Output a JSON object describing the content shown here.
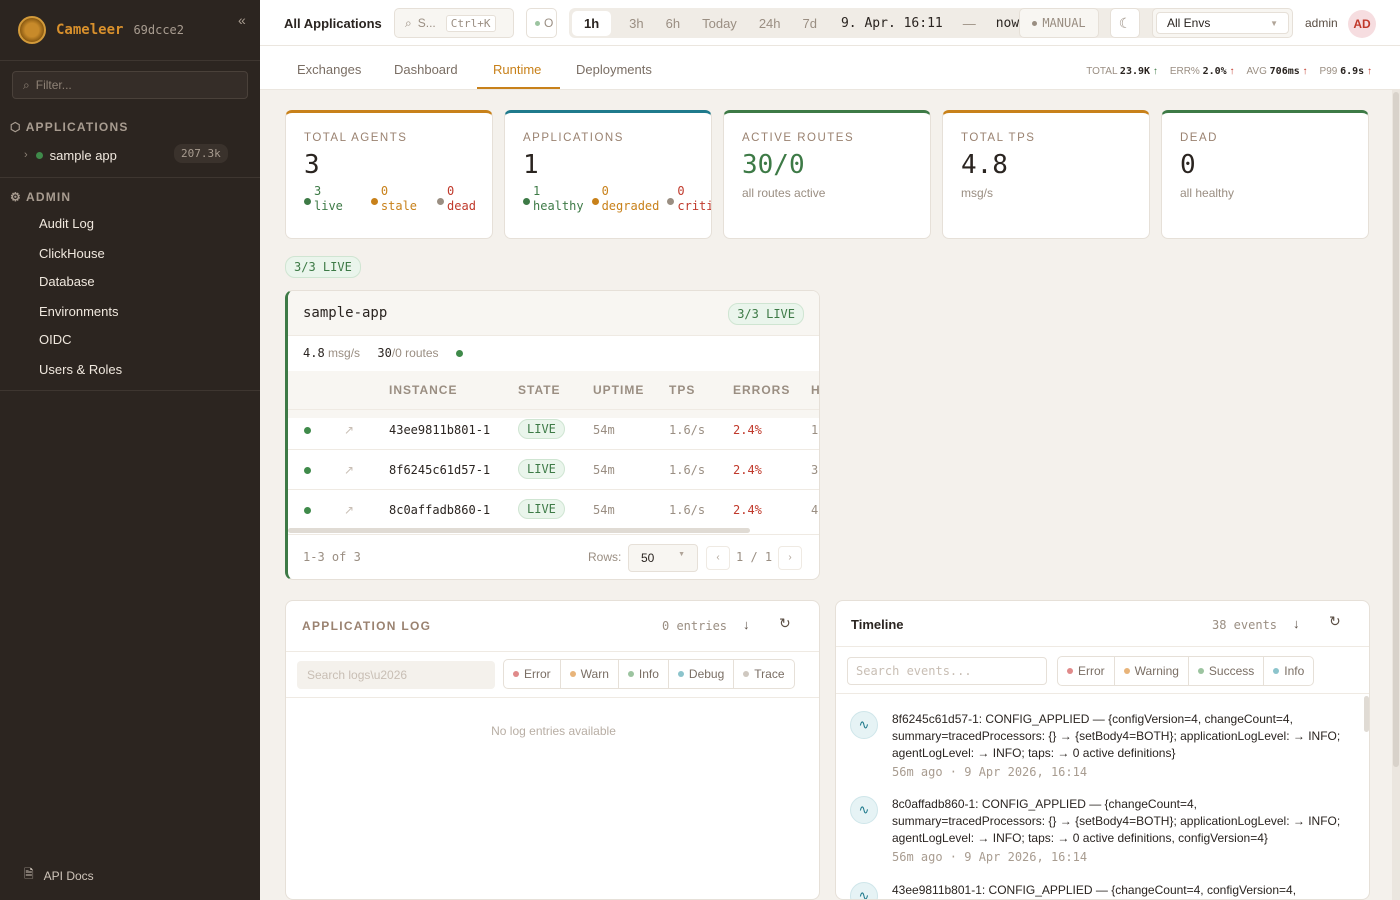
{
  "sidebar": {
    "brand": "Cameleer",
    "version": "69dcce2",
    "filter_placeholder": "Filter...",
    "applications_label": "APPLICATIONS",
    "apps": [
      {
        "name": "sample app",
        "count": "207.3k",
        "status": "live"
      }
    ],
    "admin_label": "ADMIN",
    "admin_items": [
      "Audit Log",
      "ClickHouse",
      "Database",
      "Environments",
      "OIDC",
      "Users & Roles"
    ],
    "api_docs": "API Docs"
  },
  "header": {
    "title": "All Applications",
    "search_placeholder": "S...",
    "search_shortcut": "Ctrl+K",
    "status_label": "O",
    "time_ranges": [
      "1h",
      "3h",
      "6h",
      "Today",
      "24h",
      "7d"
    ],
    "active_range": "1h",
    "range_from": "9. Apr. 16:11",
    "range_sep": "—",
    "range_to": "now",
    "refresh_mode": "MANUAL",
    "env": "All Envs",
    "user": "admin",
    "avatar": "AD"
  },
  "tabs": [
    "Exchanges",
    "Dashboard",
    "Runtime",
    "Deployments"
  ],
  "active_tab": "Runtime",
  "kpis": [
    {
      "label": "TOTAL",
      "value": "23.9K",
      "trend": "up",
      "color": "#3d7a46"
    },
    {
      "label": "ERR%",
      "value": "2.0%",
      "trend": "up",
      "color": "#c0392b"
    },
    {
      "label": "AVG",
      "value": "706ms",
      "trend": "up",
      "color": "#c0392b"
    },
    {
      "label": "P99",
      "value": "6.9s",
      "trend": "up",
      "color": "#c0392b"
    }
  ],
  "cards": [
    {
      "label": "TOTAL AGENTS",
      "value": "3",
      "accent": "#c8811a",
      "breakdown": [
        {
          "n": "3",
          "label": "live",
          "color": "#3d7a46"
        },
        {
          "n": "0",
          "label": "stale",
          "color": "#c8811a"
        },
        {
          "n": "0",
          "label": "dead",
          "color": "#c0392b"
        }
      ]
    },
    {
      "label": "APPLICATIONS",
      "value": "1",
      "accent": "#1f7a8c",
      "breakdown": [
        {
          "n": "1",
          "label": "healthy",
          "color": "#3d7a46"
        },
        {
          "n": "0",
          "label": "degraded",
          "color": "#c8811a"
        },
        {
          "n": "0",
          "label": "criti",
          "color": "#c0392b"
        }
      ]
    },
    {
      "label": "ACTIVE ROUTES",
      "value": "30/0",
      "sub": "all routes active",
      "accent": "#3d7a46"
    },
    {
      "label": "TOTAL TPS",
      "value": "4.8",
      "sub": "msg/s",
      "accent": "#c8811a"
    },
    {
      "label": "DEAD",
      "value": "0",
      "sub": "all healthy",
      "accent": "#3d7a46"
    }
  ],
  "live_summary": "3/3 LIVE",
  "app": {
    "name": "sample-app",
    "badge": "3/3 LIVE",
    "tps": "4.8",
    "tps_unit": "msg/s",
    "routes": "30",
    "routes_rest": "/0 routes",
    "columns": [
      "INSTANCE",
      "STATE",
      "UPTIME",
      "TPS",
      "ERRORS",
      "H"
    ],
    "rows": [
      {
        "instance": "43ee9811b801-1",
        "state": "LIVE",
        "uptime": "54m",
        "tps": "1.6/s",
        "errors": "2.4%",
        "h": "1"
      },
      {
        "instance": "8f6245c61d57-1",
        "state": "LIVE",
        "uptime": "54m",
        "tps": "1.6/s",
        "errors": "2.4%",
        "h": "3"
      },
      {
        "instance": "8c0affadb860-1",
        "state": "LIVE",
        "uptime": "54m",
        "tps": "1.6/s",
        "errors": "2.4%",
        "h": "4"
      }
    ],
    "range": "1-3 of 3",
    "rows_label": "Rows:",
    "rows_value": "50",
    "page": "1 / 1"
  },
  "log": {
    "title": "APPLICATION LOG",
    "count": "0 entries",
    "search_placeholder": "Search logs\\u2026",
    "levels": [
      {
        "label": "Error",
        "color": "#e08a8a"
      },
      {
        "label": "Warn",
        "color": "#e8b47a"
      },
      {
        "label": "Info",
        "color": "#9cc4a0"
      },
      {
        "label": "Debug",
        "color": "#8cc4cc"
      },
      {
        "label": "Trace",
        "color": "#cfc8c0"
      }
    ],
    "empty": "No log entries available"
  },
  "timeline": {
    "title": "Timeline",
    "count": "38 events",
    "search_placeholder": "Search events...",
    "levels": [
      {
        "label": "Error",
        "color": "#e08a8a"
      },
      {
        "label": "Warning",
        "color": "#e8b47a"
      },
      {
        "label": "Success",
        "color": "#9cc4a0"
      },
      {
        "label": "Info",
        "color": "#8cc4cc"
      }
    ],
    "events": [
      {
        "text": "8f6245c61d57-1: CONFIG_APPLIED — {configVersion=4, changeCount=4, summary=tracedProcessors: {} → {setBody4=BOTH}; applicationLogLevel: → INFO; agentLogLevel: → INFO; taps: → 0 active definitions}",
        "time": "56m ago · 9 Apr 2026, 16:14"
      },
      {
        "text": "8c0affadb860-1: CONFIG_APPLIED — {changeCount=4, summary=tracedProcessors: {} → {setBody4=BOTH}; applicationLogLevel: → INFO; agentLogLevel: → INFO; taps: → 0 active definitions, configVersion=4}",
        "time": "56m ago · 9 Apr 2026, 16:14"
      },
      {
        "text": "43ee9811b801-1: CONFIG_APPLIED — {changeCount=4, configVersion=4,",
        "time": ""
      }
    ]
  }
}
